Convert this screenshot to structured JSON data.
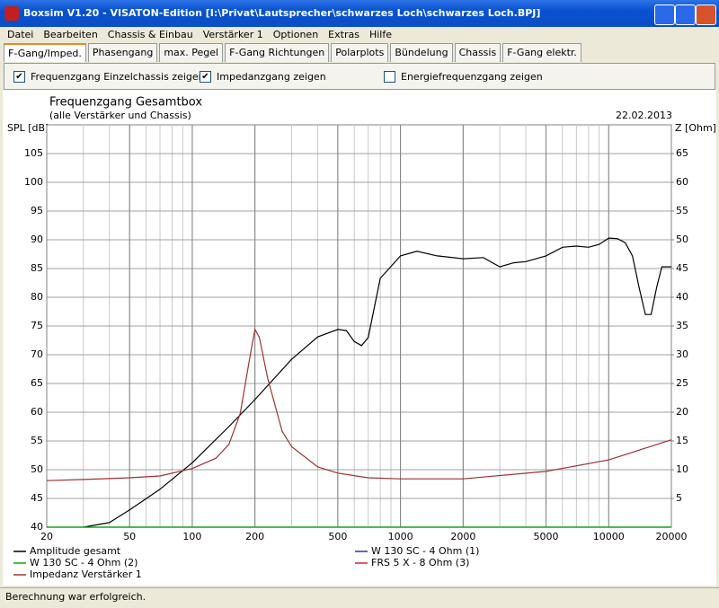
{
  "window": {
    "title": "Boxsim V1.20 - VISATON-Edition [I:\\Privat\\Lautsprecher\\schwarzes Loch\\schwarzes Loch.BPJ]",
    "menu": [
      "Datei",
      "Bearbeiten",
      "Chassis & Einbau",
      "Verstärker 1",
      "Optionen",
      "Extras",
      "Hilfe"
    ],
    "tabs": [
      "F-Gang/Imped.",
      "Phasengang",
      "max. Pegel",
      "F-Gang Richtungen",
      "Polarplots",
      "Bündelung",
      "Chassis",
      "F-Gang elektr."
    ],
    "checkboxes": [
      {
        "label": "Frequenzgang Einzelchassis zeigen",
        "checked": true
      },
      {
        "label": "Impedanzgang zeigen",
        "checked": true
      },
      {
        "label": "Energiefrequenzgang zeigen",
        "checked": false
      }
    ],
    "status": "Berechnung war erfolgreich."
  },
  "chart_data": {
    "type": "line",
    "title": "Frequenzgang Gesamtbox",
    "subtitle": "(alle Verstärker und Chassis)",
    "date": "22.02.2013",
    "y_label": "SPL [dB]",
    "y2_label": "Z [Ohm]",
    "log_x": true,
    "grid": true,
    "xlim": [
      20,
      20000
    ],
    "xticks": [
      20,
      50,
      100,
      200,
      500,
      1000,
      2000,
      5000,
      10000,
      20000
    ],
    "ylim": [
      40,
      110
    ],
    "yticks": [
      40,
      45,
      50,
      55,
      60,
      65,
      70,
      75,
      80,
      85,
      90,
      95,
      100,
      105
    ],
    "y2lim": [
      0,
      70
    ],
    "y2ticks": [
      5,
      10,
      15,
      20,
      25,
      30,
      35,
      40,
      45,
      50,
      55,
      60,
      65
    ],
    "series": [
      {
        "name": "Amplitude gesamt",
        "color": "#000000",
        "x": [
          30,
          40,
          50,
          70,
          100,
          150,
          200,
          300,
          400,
          500,
          550,
          600,
          650,
          700,
          800,
          1000,
          1200,
          1500,
          2000,
          2500,
          3000,
          3500,
          4000,
          5000,
          6000,
          7000,
          8000,
          9000,
          10000,
          11000,
          12000,
          13000,
          14000,
          15000,
          16000,
          17000,
          18000,
          20000
        ],
        "values": [
          40,
          40.8,
          43,
          46.6,
          51.2,
          57.5,
          62.2,
          69.2,
          73.1,
          74.4,
          74.2,
          72.3,
          71.6,
          73,
          83.3,
          87.2,
          88,
          87.2,
          86.7,
          86.9,
          85.3,
          86,
          86.2,
          87.2,
          88.7,
          88.9,
          88.7,
          89.2,
          90.3,
          90.2,
          89.5,
          87.2,
          81.7,
          77,
          77,
          81.7,
          85.3,
          85.3
        ]
      },
      {
        "name": "W 130 SC - 4 Ohm (1)",
        "color": "#3030c0",
        "x": [
          20,
          20000
        ],
        "values": [
          40,
          40
        ]
      },
      {
        "name": "W 130 SC - 4 Ohm (2)",
        "color": "#00b000",
        "x": [
          20,
          20000
        ],
        "values": [
          40,
          40
        ]
      },
      {
        "name": "FRS 5 X - 8 Ohm (3)",
        "color": "#e02020",
        "x": [],
        "values": []
      },
      {
        "name": "Impedanz Verstärker 1",
        "color": "#993333",
        "axis": "y2",
        "x": [
          20,
          30,
          50,
          70,
          100,
          130,
          150,
          170,
          190,
          200,
          210,
          230,
          270,
          300,
          400,
          500,
          700,
          1000,
          2000,
          5000,
          10000,
          20000
        ],
        "values": [
          8.1,
          8.3,
          8.6,
          8.9,
          10.2,
          12,
          14.4,
          19.8,
          30,
          34.4,
          33,
          26,
          16.7,
          14,
          10.5,
          9.4,
          8.6,
          8.4,
          8.4,
          9.7,
          11.7,
          15.2
        ]
      }
    ]
  }
}
